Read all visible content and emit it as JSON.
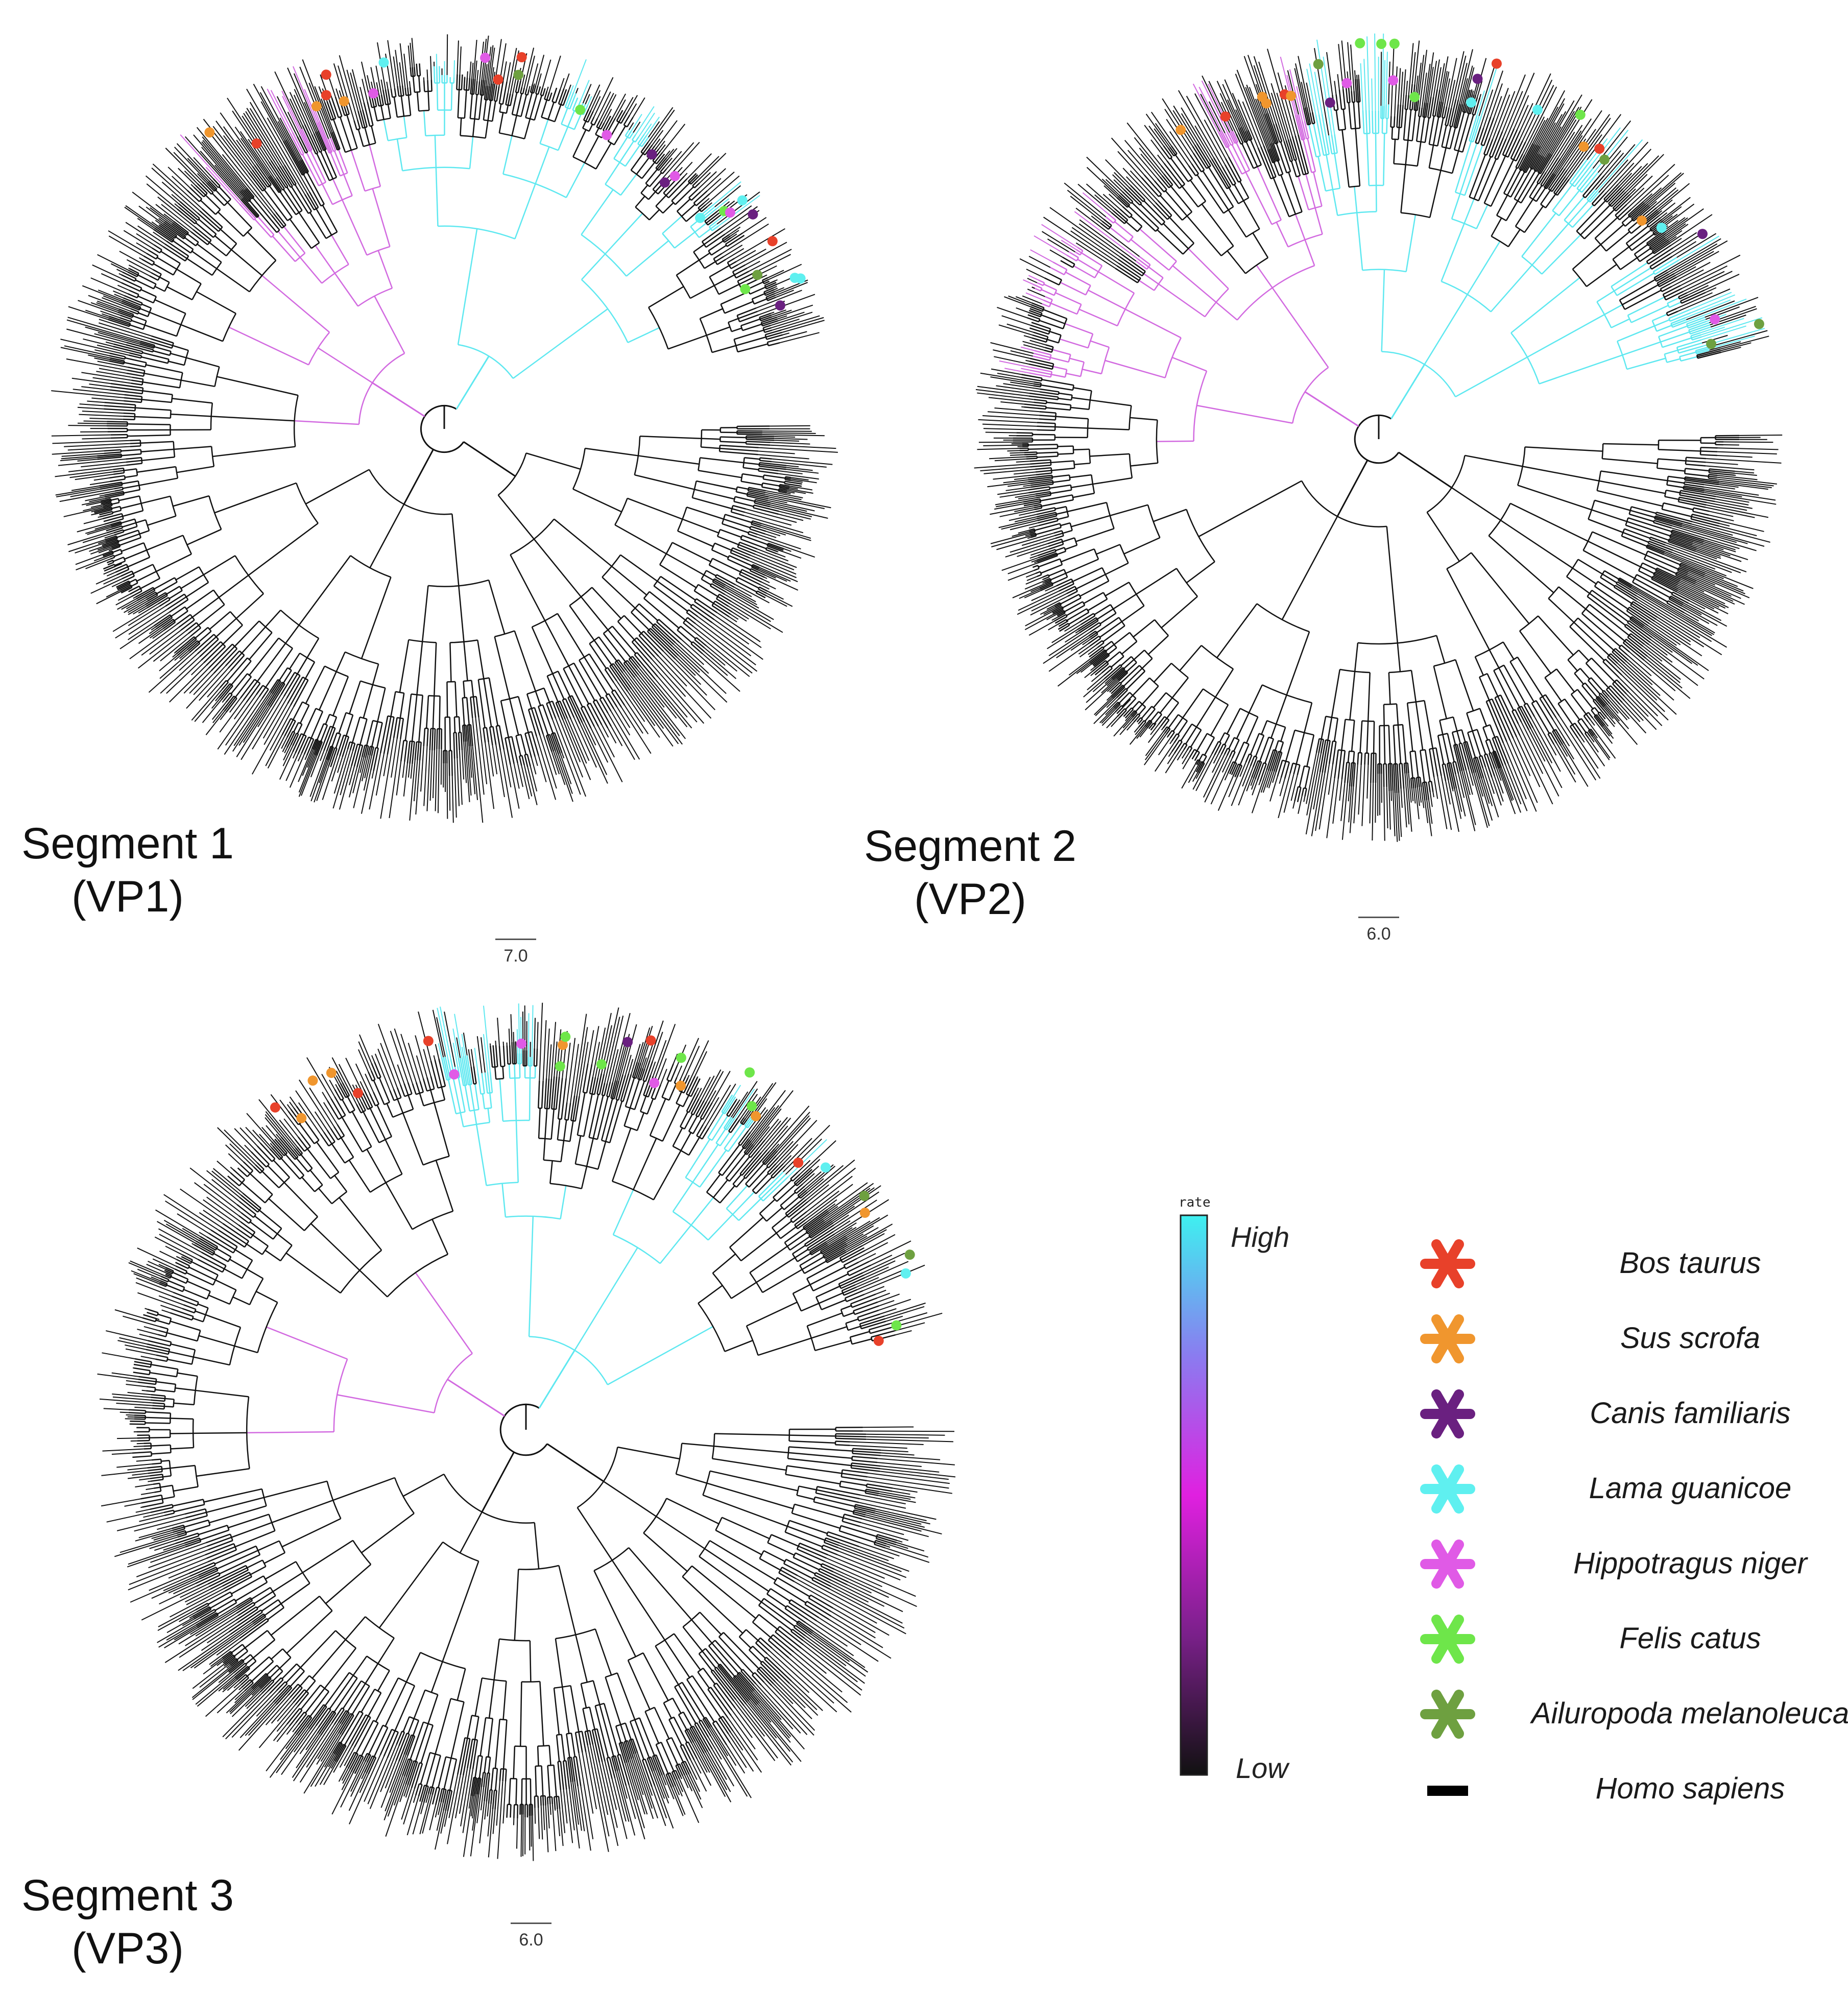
{
  "panels": [
    {
      "id": "seg1",
      "label_line1": "Segment 1",
      "label_line2": "(VP1)",
      "scale_value": "7.0",
      "seed": 11
    },
    {
      "id": "seg2",
      "label_line1": "Segment 2",
      "label_line2": "(VP2)",
      "scale_value": "6.0",
      "seed": 29
    },
    {
      "id": "seg3",
      "label_line1": "Segment 3",
      "label_line2": "(VP3)",
      "scale_value": "6.0",
      "seed": 47
    }
  ],
  "colorbar": {
    "title": "rate",
    "high_label": "High",
    "low_label": "Low",
    "gradient": [
      "#3ef0f0",
      "#8a7cf0",
      "#e020e0",
      "#7a208a",
      "#111111"
    ]
  },
  "legend": [
    {
      "name": "Bos taurus",
      "color": "#e8412a",
      "glyph": "asterisk-icon"
    },
    {
      "name": "Sus scrofa",
      "color": "#f0962e",
      "glyph": "asterisk-icon"
    },
    {
      "name": "Canis familiaris",
      "color": "#6a2080",
      "glyph": "asterisk-icon"
    },
    {
      "name": "Lama guanicoe",
      "color": "#5ff0f0",
      "glyph": "asterisk-icon"
    },
    {
      "name": "Hippotragus niger",
      "color": "#e05ae6",
      "glyph": "asterisk-icon"
    },
    {
      "name": "Felis catus",
      "color": "#6ee64a",
      "glyph": "asterisk-icon"
    },
    {
      "name": "Ailuropoda melanoleuca",
      "color": "#6ea040",
      "glyph": "asterisk-icon"
    },
    {
      "name": "Homo sapiens",
      "color": "#000000",
      "glyph": "bar-icon"
    }
  ],
  "branch_colors": {
    "default": "#111111",
    "high_rate": "#5ee8f0",
    "mid_rate": "#d26ae0",
    "low_mid_rate": "#5a1a6a"
  }
}
